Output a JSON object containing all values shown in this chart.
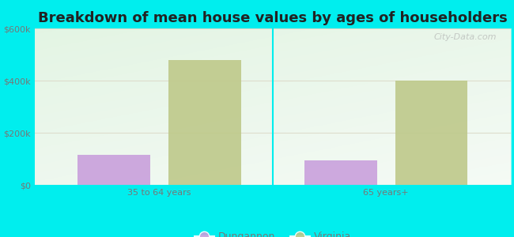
{
  "title": "Breakdown of mean house values by ages of householders",
  "categories": [
    "35 to 64 years",
    "65 years+"
  ],
  "series": {
    "Dungannon": [
      115000,
      95000
    ],
    "Virginia": [
      480000,
      400000
    ]
  },
  "bar_colors": {
    "Dungannon": "#c9a0dc",
    "Virginia": "#bec98a"
  },
  "ylim": [
    0,
    600000
  ],
  "yticks": [
    0,
    200000,
    400000,
    600000
  ],
  "ytick_labels": [
    "$0",
    "$200k",
    "$400k",
    "$600k"
  ],
  "background_color": "#00eeee",
  "title_fontsize": 13,
  "legend_fontsize": 9,
  "tick_fontsize": 8,
  "bar_width": 0.32,
  "watermark": "City-Data.com",
  "tick_color": "#777777",
  "title_color": "#222222"
}
